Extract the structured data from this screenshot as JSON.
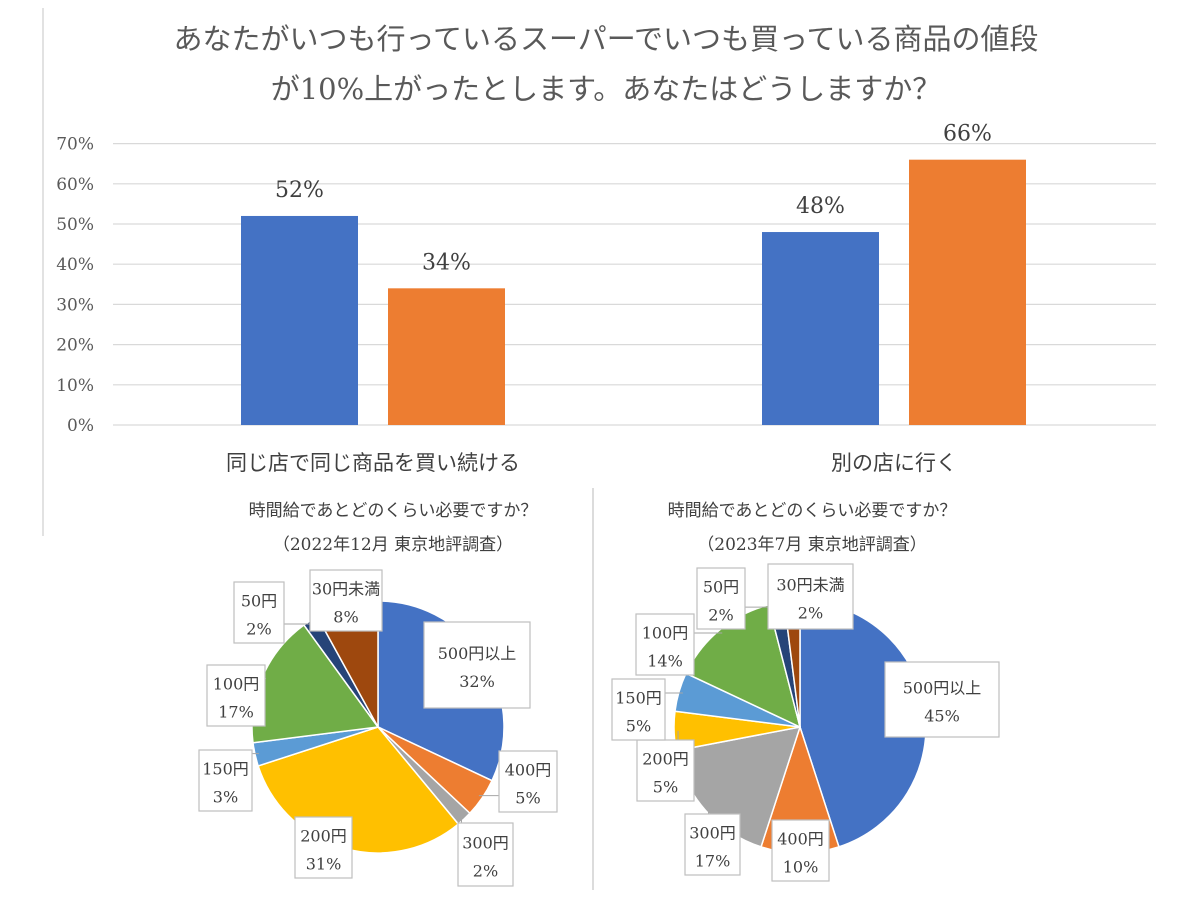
{
  "bar_chart": {
    "title_line1": "あなたがいつも行っているスーパーでいつも買っている商品の値段",
    "title_line2": "が10%上がったとします。あなたはどうしますか？"
  },
  "chart_data": [
    {
      "type": "bar",
      "title": "あなたがいつも行っているスーパーでいつも買っている商品の値段が10%上がったとします。あなたはどうしますか？",
      "categories": [
        "同じ店で同じ商品を買い続ける",
        "別の店に行く"
      ],
      "series": [
        {
          "color": "#4472C4",
          "values": [
            52,
            48
          ],
          "labels": [
            "52%",
            "48%"
          ]
        },
        {
          "color": "#ED7D31",
          "values": [
            34,
            66
          ],
          "labels": [
            "34%",
            "66%"
          ]
        }
      ],
      "ylim": [
        0,
        70
      ],
      "yticks": [
        "0%",
        "10%",
        "20%",
        "30%",
        "40%",
        "50%",
        "60%",
        "70%"
      ],
      "grid": true,
      "legend": "none"
    },
    {
      "type": "pie",
      "title": "時間給であとどのくらい必要ですか？",
      "subtitle": "（2022年12月 東京地評調査）",
      "slices": [
        {
          "name": "500円以上",
          "value": 32,
          "label": "32%",
          "color": "#4472C4"
        },
        {
          "name": "400円",
          "value": 5,
          "label": "5%",
          "color": "#ED7D31"
        },
        {
          "name": "300円",
          "value": 2,
          "label": "2%",
          "color": "#A5A5A5"
        },
        {
          "name": "200円",
          "value": 31,
          "label": "31%",
          "color": "#FFC000"
        },
        {
          "name": "150円",
          "value": 3,
          "label": "3%",
          "color": "#5B9BD5"
        },
        {
          "name": "100円",
          "value": 17,
          "label": "17%",
          "color": "#70AD47"
        },
        {
          "name": "50円",
          "value": 2,
          "label": "2%",
          "color": "#264478"
        },
        {
          "name": "30円未満",
          "value": 8,
          "label": "8%",
          "color": "#9E480E"
        }
      ]
    },
    {
      "type": "pie",
      "title": "時間給であとどのくらい必要ですか？",
      "subtitle": "（2023年7月 東京地評調査）",
      "slices": [
        {
          "name": "500円以上",
          "value": 45,
          "label": "45%",
          "color": "#4472C4"
        },
        {
          "name": "400円",
          "value": 10,
          "label": "10%",
          "color": "#ED7D31"
        },
        {
          "name": "300円",
          "value": 17,
          "label": "17%",
          "color": "#A5A5A5"
        },
        {
          "name": "200円",
          "value": 5,
          "label": "5%",
          "color": "#FFC000"
        },
        {
          "name": "150円",
          "value": 5,
          "label": "5%",
          "color": "#5B9BD5"
        },
        {
          "name": "100円",
          "value": 14,
          "label": "14%",
          "color": "#70AD47"
        },
        {
          "name": "50円",
          "value": 2,
          "label": "2%",
          "color": "#264478"
        },
        {
          "name": "30円未満",
          "value": 2,
          "label": "2%",
          "color": "#9E480E"
        }
      ]
    }
  ]
}
